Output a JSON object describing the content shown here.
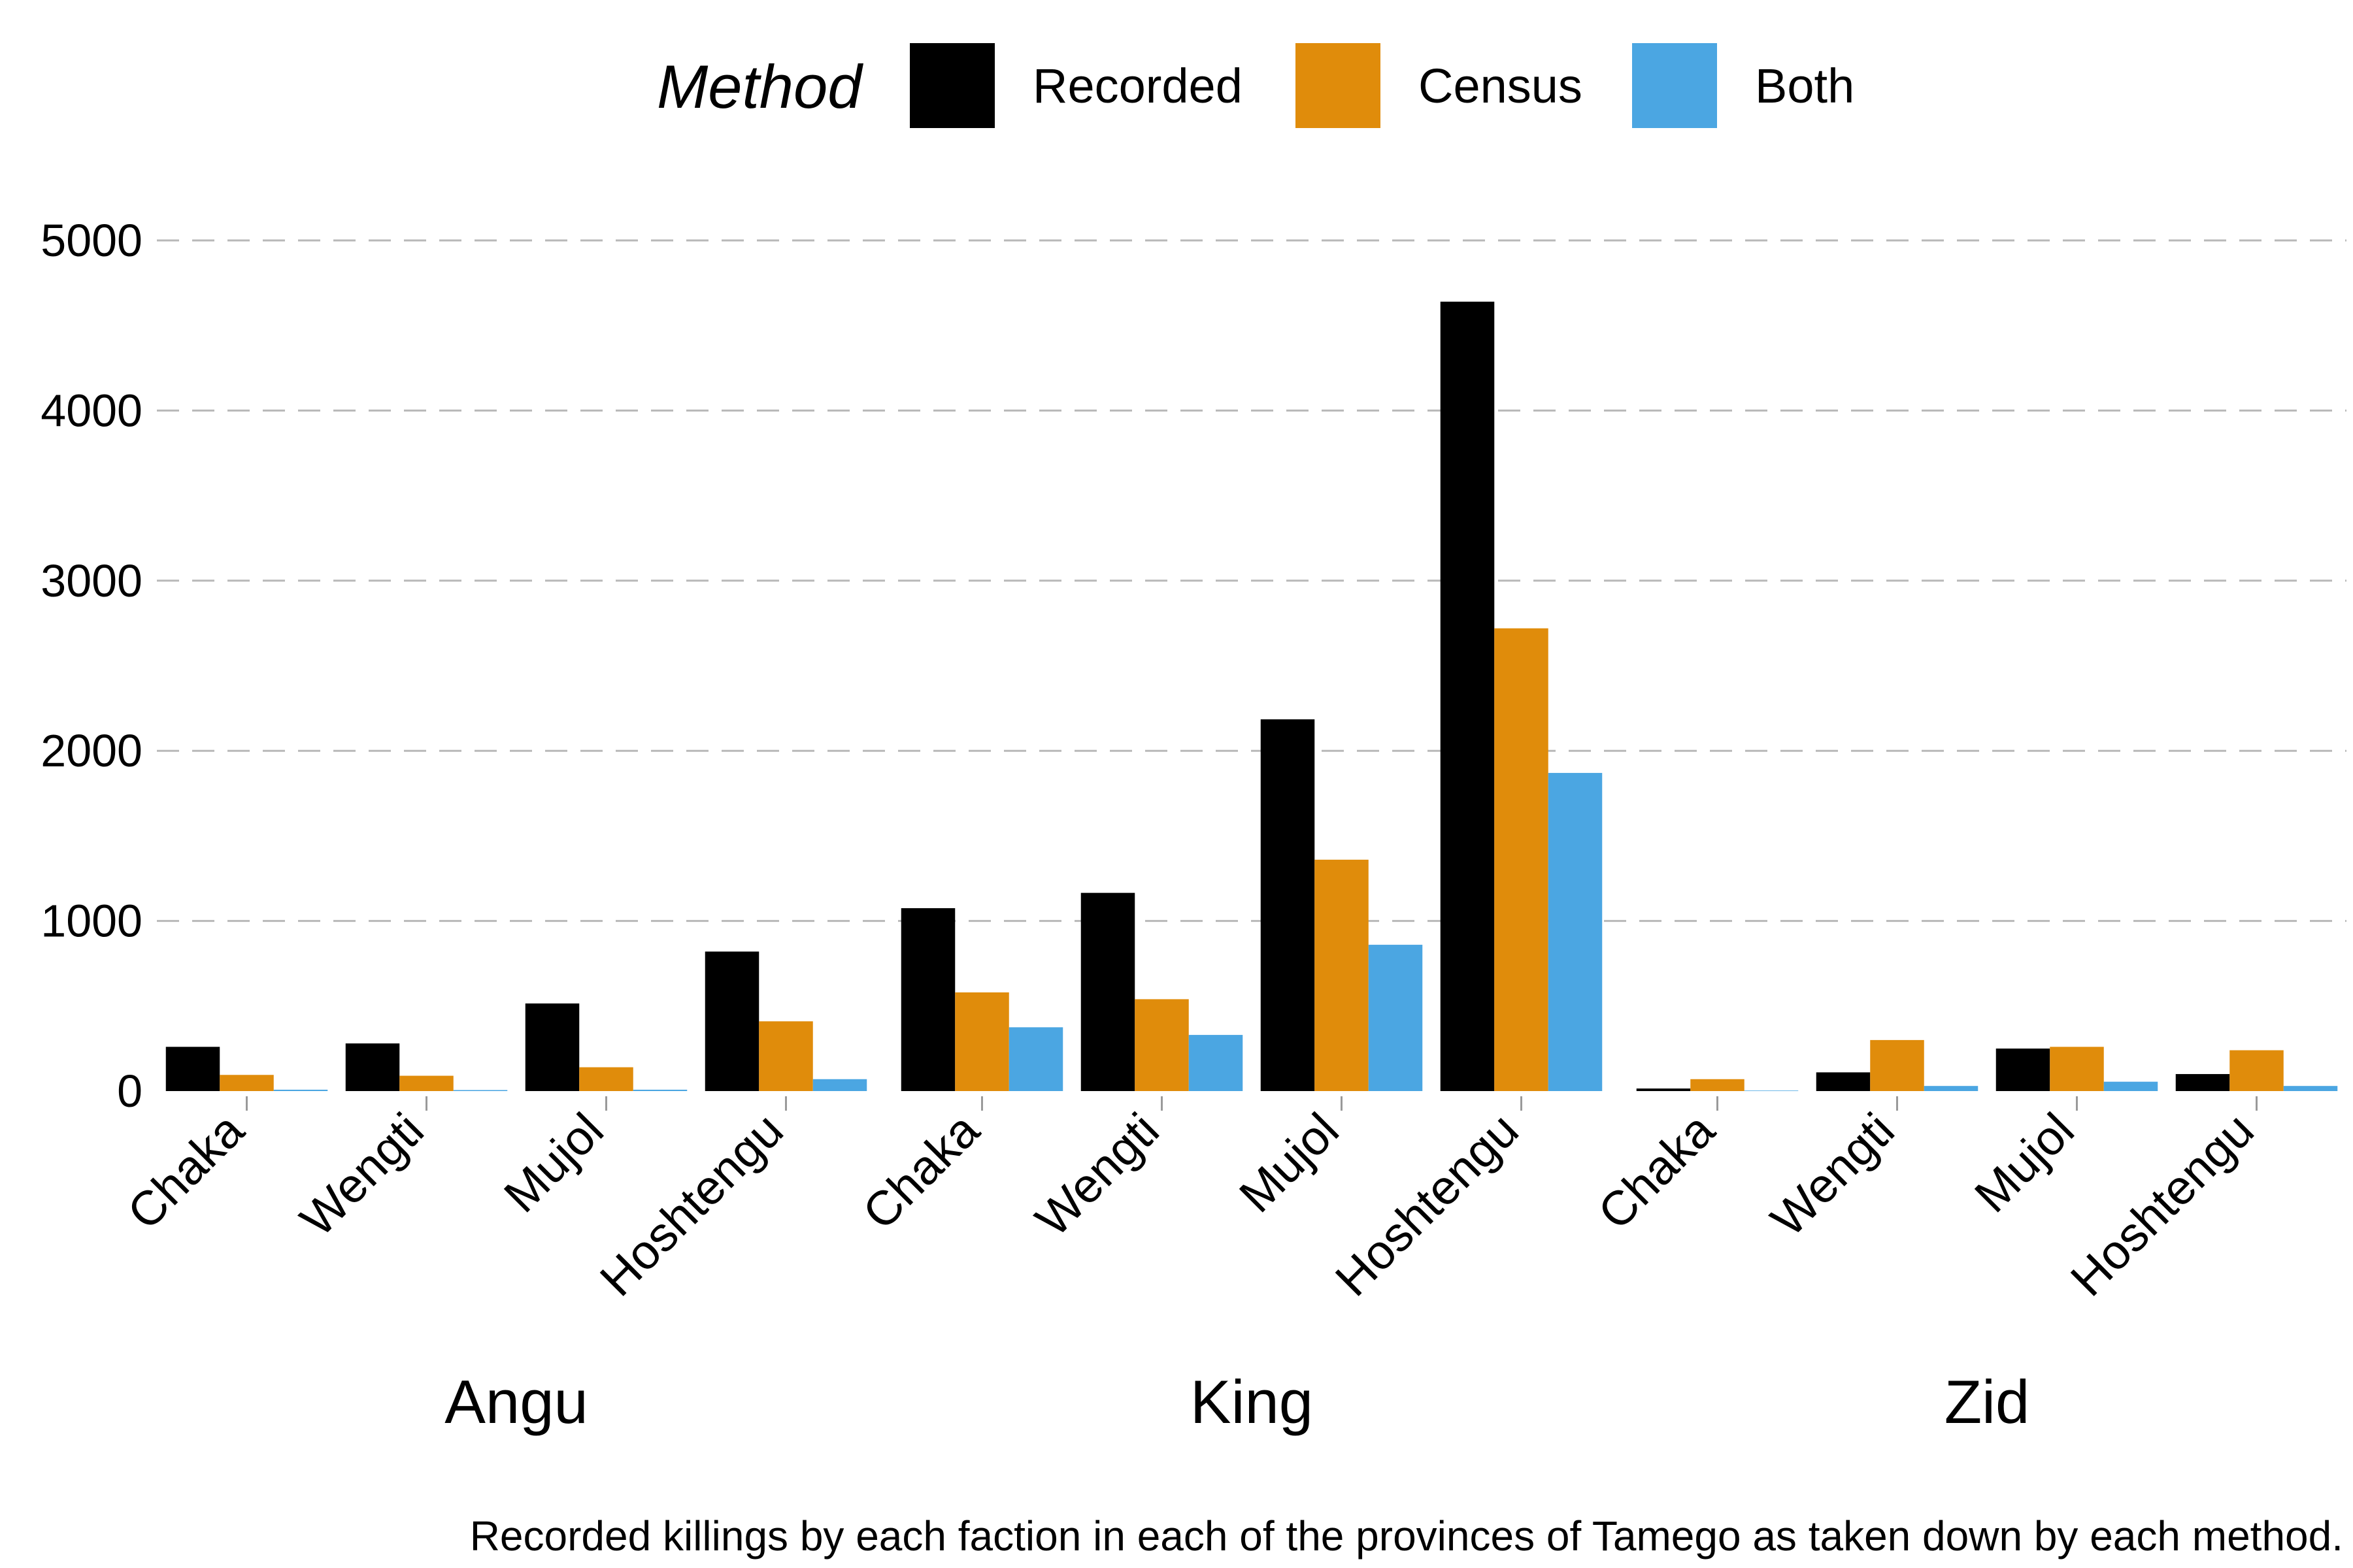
{
  "chart_data": {
    "type": "bar",
    "legend": {
      "title": "Method",
      "placement": "top",
      "entries": [
        {
          "name": "Recorded",
          "color": "#000000"
        },
        {
          "name": "Census",
          "color": "#E08C0B"
        },
        {
          "name": "Both",
          "color": "#4BA6E2"
        }
      ]
    },
    "ylim": [
      0,
      5000
    ],
    "yticks": [
      0,
      1000,
      2000,
      3000,
      4000,
      5000
    ],
    "grid": "horizontal dashed",
    "facets": [
      {
        "label": "Angu",
        "categories": [
          "Chaka",
          "Wengti",
          "Mujol",
          "Hoshtengu"
        ],
        "series": [
          {
            "name": "Recorded",
            "values": [
              260,
              280,
              515,
              820
            ]
          },
          {
            "name": "Census",
            "values": [
              95,
              90,
              140,
              410
            ]
          },
          {
            "name": "Both",
            "values": [
              8,
              6,
              8,
              70
            ]
          }
        ]
      },
      {
        "label": "King",
        "categories": [
          "Chaka",
          "Wengti",
          "Mujol",
          "Hoshtengu"
        ],
        "series": [
          {
            "name": "Recorded",
            "values": [
              1075,
              1165,
              2185,
              4640
            ]
          },
          {
            "name": "Census",
            "values": [
              580,
              540,
              1360,
              2720
            ]
          },
          {
            "name": "Both",
            "values": [
              375,
              330,
              860,
              1870
            ]
          }
        ]
      },
      {
        "label": "Zid",
        "categories": [
          "Chaka",
          "Wengti",
          "Mujol",
          "Hoshtengu"
        ],
        "series": [
          {
            "name": "Recorded",
            "values": [
              15,
              110,
              250,
              100
            ]
          },
          {
            "name": "Census",
            "values": [
              70,
              300,
              260,
              240
            ]
          },
          {
            "name": "Both",
            "values": [
              3,
              30,
              55,
              30
            ]
          }
        ]
      }
    ],
    "caption": "Recorded killings by each faction in each of the provinces of Tamego as taken down by each method."
  }
}
